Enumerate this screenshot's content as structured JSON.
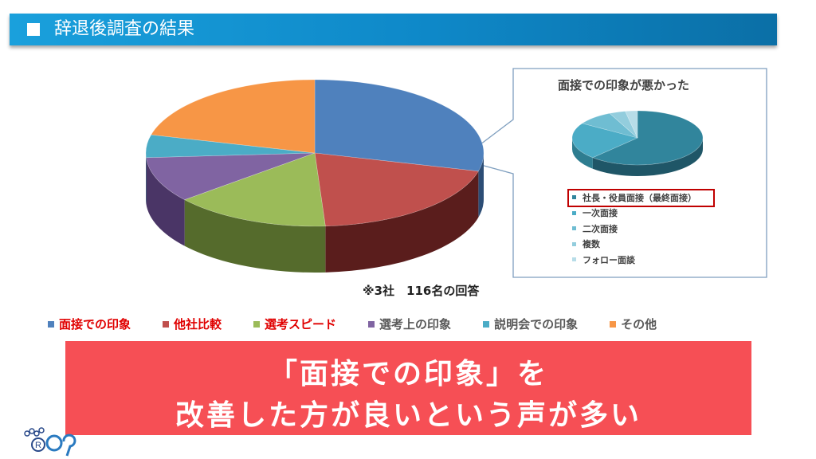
{
  "header": {
    "title": "辞退後調査の結果"
  },
  "main_chart": {
    "slices": [
      {
        "name": "面接での印象",
        "fraction": 0.29,
        "color": "#4f81bd",
        "side": "#2c4d75"
      },
      {
        "name": "他社比較",
        "fraction": 0.2,
        "color": "#c0504d",
        "side": "#5a1d1c"
      },
      {
        "name": "選考スピード",
        "fraction": 0.15,
        "color": "#9bbb59",
        "side": "#556b2c"
      },
      {
        "name": "選考上の印象",
        "fraction": 0.1,
        "color": "#8064a2",
        "side": "#4a3566"
      },
      {
        "name": "説明会での印象",
        "fraction": 0.05,
        "color": "#4bacc6",
        "side": "#236a7e"
      },
      {
        "name": "その他",
        "fraction": 0.21,
        "color": "#f79646",
        "side": "#a85a1c"
      }
    ]
  },
  "inset_chart": {
    "title": "面接での印象が悪かった",
    "slices": [
      {
        "name": "社長・役員面接（最終面接）",
        "fraction": 0.62,
        "color": "#31859c",
        "side": "#1f5667"
      },
      {
        "name": "一次面接",
        "fraction": 0.22,
        "color": "#4bacc6",
        "side": "#2e7d90"
      },
      {
        "name": "二次面接",
        "fraction": 0.09,
        "color": "#6fbdd2",
        "side": "#3f8ea4"
      },
      {
        "name": "複数",
        "fraction": 0.04,
        "color": "#93cddd",
        "side": "#5b9fb2"
      },
      {
        "name": "フォロー面談",
        "fraction": 0.03,
        "color": "#b7dde8",
        "side": "#7cb3c3"
      }
    ]
  },
  "response_note": "※3社　116名の回答",
  "legend": [
    {
      "label": "面接での印象",
      "color": "#e00000",
      "marker_color": "#4f81bd"
    },
    {
      "label": "他社比較",
      "color": "#e00000",
      "marker_color": "#c0504d"
    },
    {
      "label": "選考スピード",
      "color": "#e00000",
      "marker_color": "#9bbb59"
    },
    {
      "label": "選考上の印象",
      "color": "#595959",
      "marker_color": "#8064a2"
    },
    {
      "label": "説明会での印象",
      "color": "#595959",
      "marker_color": "#4bacc6"
    },
    {
      "label": "その他",
      "color": "#595959",
      "marker_color": "#f79646"
    }
  ],
  "banner": {
    "line1": "「面接での印象」を",
    "line2": "改善した方が良いという声が多い"
  }
}
